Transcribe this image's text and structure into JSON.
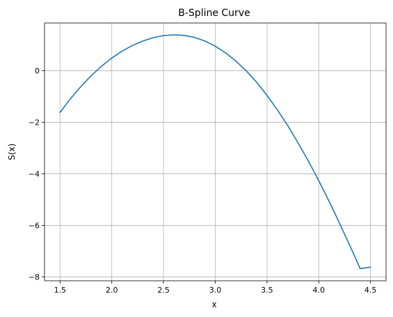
{
  "chart_data": {
    "type": "line",
    "title": "B-Spline Curve",
    "xlabel": "x",
    "ylabel": "S(x)",
    "xlim": [
      1.35,
      4.65
    ],
    "ylim": [
      -8.15,
      1.85
    ],
    "xticks": [
      1.5,
      2.0,
      2.5,
      3.0,
      3.5,
      4.0,
      4.5
    ],
    "xtick_labels": [
      "1.5",
      "2.0",
      "2.5",
      "3.0",
      "3.5",
      "4.0",
      "4.5"
    ],
    "yticks": [
      -8,
      -6,
      -4,
      -2,
      0
    ],
    "ytick_labels": [
      "−8",
      "−6",
      "−4",
      "−2",
      "0"
    ],
    "grid": true,
    "series": [
      {
        "color": "#1f77b4",
        "x": [
          1.5,
          1.6,
          1.7,
          1.8,
          1.9,
          2.0,
          2.1,
          2.2,
          2.3,
          2.4,
          2.5,
          2.6,
          2.7,
          2.8,
          2.9,
          3.0,
          3.1,
          3.2,
          3.3,
          3.4,
          3.5,
          3.6,
          3.7,
          3.8,
          3.9,
          4.0,
          4.1,
          4.2,
          4.3,
          4.4,
          4.5
        ],
        "y": [
          -1.62,
          -1.09,
          -0.62,
          -0.2,
          0.17,
          0.49,
          0.76,
          0.98,
          1.15,
          1.28,
          1.36,
          1.39,
          1.37,
          1.29,
          1.15,
          0.95,
          0.69,
          0.37,
          -0.01,
          -0.45,
          -0.96,
          -1.52,
          -2.13,
          -2.8,
          -3.51,
          -4.27,
          -5.07,
          -5.91,
          -6.78,
          -7.68,
          -7.62
        ]
      }
    ]
  }
}
